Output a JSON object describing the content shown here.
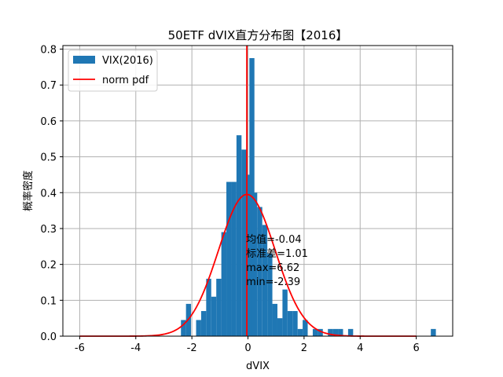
{
  "chart_data": {
    "type": "bar",
    "title": "50ETF dVIX直方分布图【2016】",
    "xlabel": "dVIX",
    "ylabel": "概率密度",
    "xlim": [
      -6.6,
      7.3
    ],
    "ylim": [
      0,
      0.81
    ],
    "xticks": [
      -6,
      -4,
      -2,
      0,
      2,
      4,
      6
    ],
    "yticks": [
      0.0,
      0.1,
      0.2,
      0.3,
      0.4,
      0.5,
      0.6,
      0.7,
      0.8
    ],
    "grid": true,
    "legend_position": "top-left",
    "colors": {
      "bars": "#1f77b4",
      "pdf": "#ff0000",
      "mean_line": "#ff0000",
      "grid": "#b0b0b0"
    },
    "series": [
      {
        "name": "VIX(2016)",
        "kind": "histogram",
        "bin_width": 0.18,
        "bins": [
          [
            -2.39,
            0.045
          ],
          [
            -2.21,
            0.09
          ],
          [
            -2.03,
            0.0
          ],
          [
            -1.85,
            0.045
          ],
          [
            -1.67,
            0.07
          ],
          [
            -1.49,
            0.16
          ],
          [
            -1.31,
            0.11
          ],
          [
            -1.13,
            0.16
          ],
          [
            -0.95,
            0.29
          ],
          [
            -0.77,
            0.43
          ],
          [
            -0.59,
            0.43
          ],
          [
            -0.41,
            0.56
          ],
          [
            -0.23,
            0.52
          ],
          [
            -0.05,
            0.45
          ],
          [
            0.05,
            0.775
          ],
          [
            0.15,
            0.4
          ],
          [
            0.33,
            0.36
          ],
          [
            0.51,
            0.31
          ],
          [
            0.69,
            0.23
          ],
          [
            0.87,
            0.09
          ],
          [
            1.05,
            0.05
          ],
          [
            1.23,
            0.13
          ],
          [
            1.41,
            0.07
          ],
          [
            1.59,
            0.07
          ],
          [
            1.77,
            0.02
          ],
          [
            1.95,
            0.045
          ],
          [
            2.13,
            0.0
          ],
          [
            2.31,
            0.02
          ],
          [
            2.49,
            0.02
          ],
          [
            2.85,
            0.02
          ],
          [
            3.03,
            0.02
          ],
          [
            3.21,
            0.02
          ],
          [
            3.57,
            0.02
          ],
          [
            6.52,
            0.02
          ]
        ]
      },
      {
        "name": "norm pdf",
        "kind": "line",
        "mean": -0.04,
        "std": 1.01,
        "x_range": [
          -6,
          6
        ]
      }
    ],
    "mean_line": {
      "x": -0.04
    },
    "annotations": [
      "均值=-0.04",
      "标准差=1.01",
      "max=6.62",
      "min=-2.39"
    ],
    "annotation_anchor": {
      "x": -0.04,
      "y": 0.26
    }
  }
}
